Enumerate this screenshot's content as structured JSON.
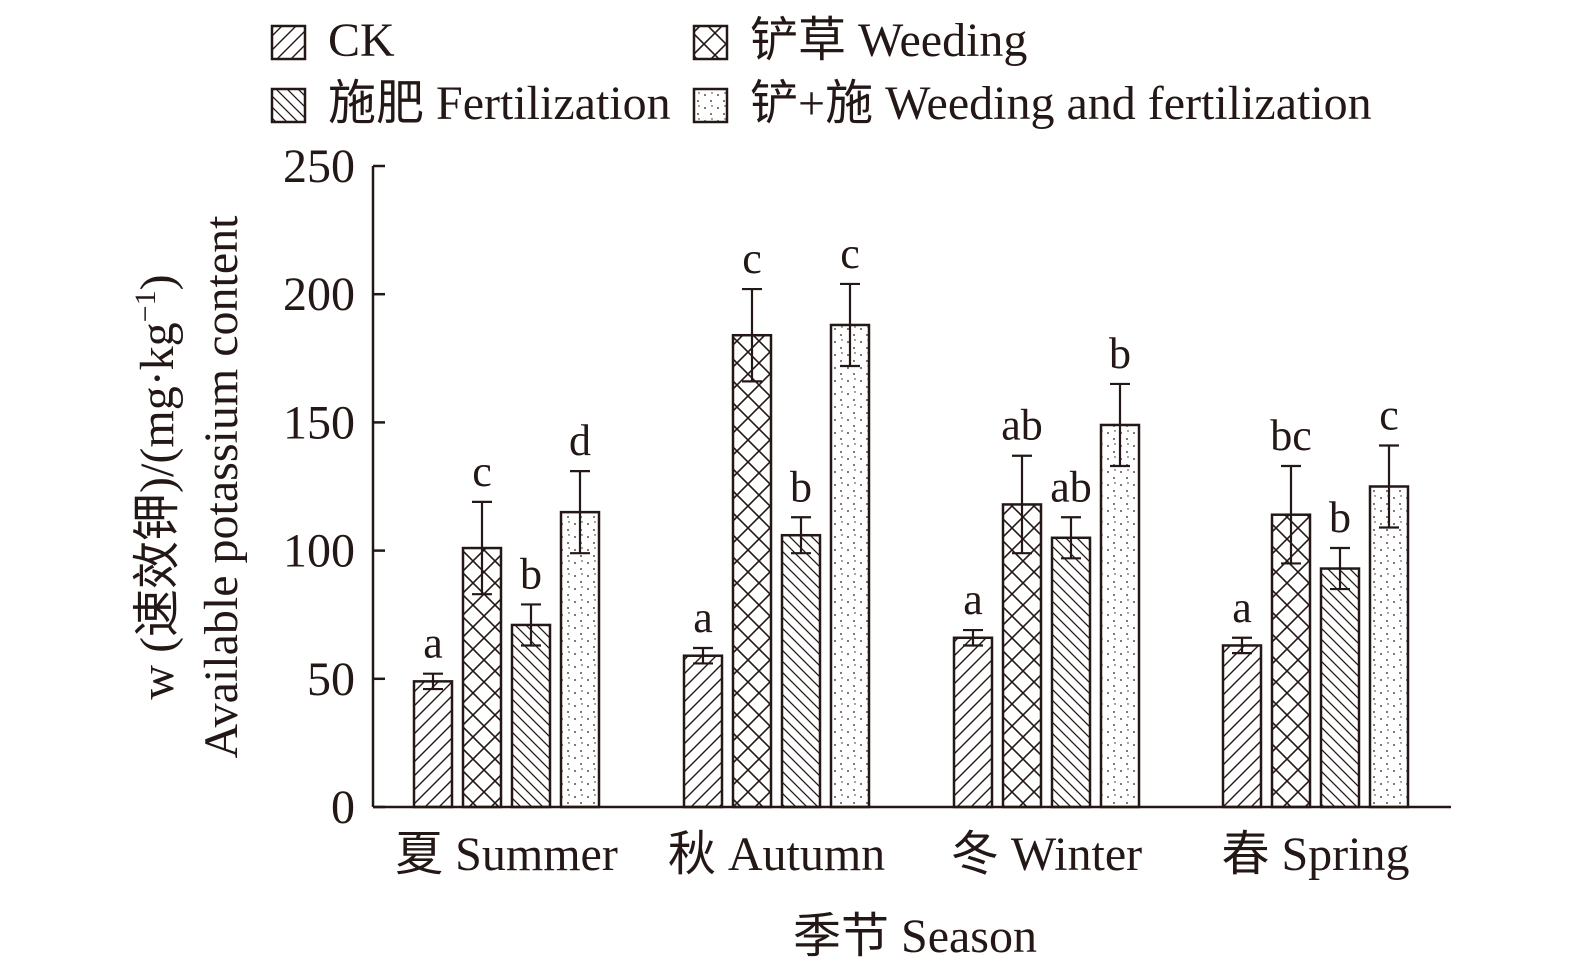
{
  "chart_data": {
    "type": "bar",
    "title": "",
    "xlabel": "季节 Season",
    "ylabel_line1": "w (速效钾)/(mg·kg",
    "ylabel_sup": "−1",
    "ylabel_close": ")",
    "ylabel_line2": "Available potassium content",
    "ylim": [
      0,
      250
    ],
    "yticks": [
      "0",
      "50",
      "100",
      "150",
      "200",
      "250"
    ],
    "categories": [
      "夏 Summer",
      "秋 Autumn",
      "冬 Winter",
      "春 Spring"
    ],
    "legend_position": "top",
    "series": [
      {
        "name": "CK",
        "pattern": "diag-fwd",
        "values": [
          49,
          59,
          66,
          63
        ],
        "errors": [
          3,
          3,
          3,
          3
        ],
        "significance": [
          "a",
          "a",
          "a",
          "a"
        ]
      },
      {
        "name": "铲草 Weeding",
        "pattern": "crosshatch",
        "values": [
          101,
          184,
          118,
          114
        ],
        "errors": [
          18,
          18,
          19,
          19
        ],
        "significance": [
          "c",
          "c",
          "ab",
          "bc"
        ]
      },
      {
        "name": "施肥 Fertilization",
        "pattern": "diag-back",
        "values": [
          71,
          106,
          105,
          93
        ],
        "errors": [
          8,
          7,
          8,
          8
        ],
        "significance": [
          "b",
          "b",
          "ab",
          "b"
        ]
      },
      {
        "name": "铲+施 Weeding and fertilization",
        "pattern": "dots",
        "values": [
          115,
          188,
          149,
          125
        ],
        "errors": [
          16,
          16,
          16,
          16
        ],
        "significance": [
          "d",
          "c",
          "b",
          "c"
        ]
      }
    ],
    "colors": {
      "ink": "#231815",
      "background": "#ffffff"
    }
  }
}
